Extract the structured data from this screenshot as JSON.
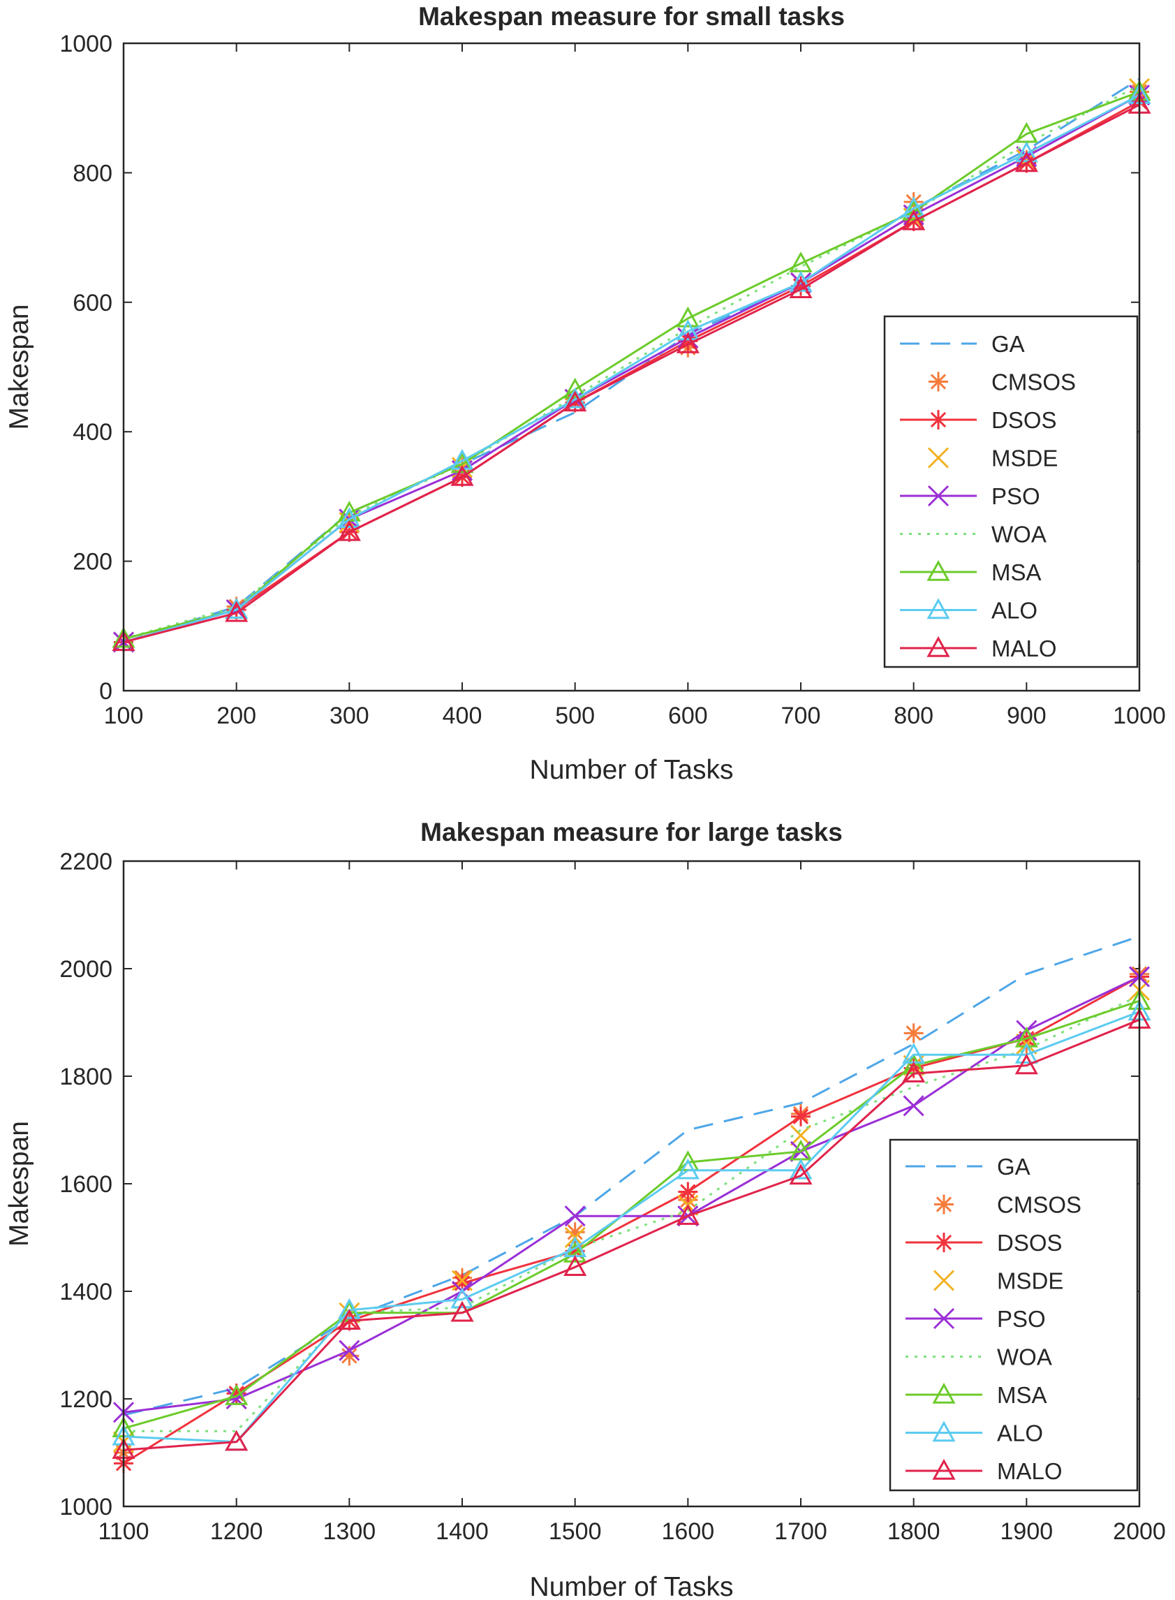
{
  "chart_data": [
    {
      "type": "line",
      "title": "Makespan measure for small tasks",
      "xlabel": "Number of Tasks",
      "ylabel": "Makespan",
      "x": [
        100,
        200,
        300,
        400,
        500,
        600,
        700,
        800,
        900,
        1000
      ],
      "xticks": [
        "100",
        "200",
        "300",
        "400",
        "500",
        "600",
        "700",
        "800",
        "900",
        "1000"
      ],
      "yticks": [
        "0",
        "200",
        "400",
        "600",
        "800",
        "1000"
      ],
      "xlim": [
        100,
        1000
      ],
      "ylim": [
        0,
        1000
      ],
      "legend_position": "inside-right",
      "series": [
        {
          "name": "GA",
          "color": "#4DA6E8",
          "style": "dashed",
          "marker": "none",
          "values": [
            75,
            130,
            275,
            350,
            430,
            550,
            630,
            745,
            835,
            945
          ]
        },
        {
          "name": "CMSOS",
          "color": "#F57B3A",
          "style": "none",
          "marker": "asterisk",
          "values": [
            75,
            130,
            265,
            345,
            450,
            530,
            625,
            755,
            820,
            925
          ]
        },
        {
          "name": "DSOS",
          "color": "#F0323C",
          "style": "solid",
          "marker": "asterisk",
          "values": [
            75,
            125,
            245,
            330,
            445,
            540,
            625,
            725,
            815,
            910
          ]
        },
        {
          "name": "MSDE",
          "color": "#F2B020",
          "style": "none",
          "marker": "x",
          "values": [
            75,
            125,
            260,
            345,
            450,
            545,
            630,
            730,
            820,
            930
          ]
        },
        {
          "name": "PSO",
          "color": "#9A2FD6",
          "style": "solid",
          "marker": "x",
          "values": [
            75,
            125,
            265,
            340,
            450,
            545,
            630,
            735,
            825,
            920
          ]
        },
        {
          "name": "WOA",
          "color": "#7EE07E",
          "style": "dotted",
          "marker": "none",
          "values": [
            80,
            130,
            270,
            350,
            455,
            560,
            655,
            740,
            845,
            935
          ]
        },
        {
          "name": "MSA",
          "color": "#6CCB2B",
          "style": "solid",
          "marker": "triangle",
          "values": [
            80,
            125,
            275,
            350,
            465,
            575,
            660,
            740,
            860,
            925
          ]
        },
        {
          "name": "ALO",
          "color": "#5CCBF0",
          "style": "solid",
          "marker": "triangle",
          "values": [
            75,
            125,
            265,
            355,
            450,
            555,
            630,
            745,
            830,
            920
          ]
        },
        {
          "name": "MALO",
          "color": "#E0234B",
          "style": "solid",
          "marker": "triangle",
          "values": [
            75,
            120,
            245,
            330,
            445,
            535,
            620,
            725,
            815,
            905
          ]
        }
      ]
    },
    {
      "type": "line",
      "title": "Makespan measure for large tasks",
      "xlabel": "Number of Tasks",
      "ylabel": "Makespan",
      "x": [
        1100,
        1200,
        1300,
        1400,
        1500,
        1600,
        1700,
        1800,
        1900,
        2000
      ],
      "xticks": [
        "1100",
        "1200",
        "1300",
        "1400",
        "1500",
        "1600",
        "1700",
        "1800",
        "1900",
        "2000"
      ],
      "yticks": [
        "1000",
        "1200",
        "1400",
        "1600",
        "1800",
        "2000",
        "2200"
      ],
      "xlim": [
        1100,
        2000
      ],
      "ylim": [
        1000,
        2200
      ],
      "legend_position": "inside-bottom-right",
      "series": [
        {
          "name": "GA",
          "color": "#4DA6E8",
          "style": "dashed",
          "marker": "none",
          "values": [
            1170,
            1220,
            1350,
            1430,
            1540,
            1700,
            1750,
            1860,
            1990,
            2060
          ]
        },
        {
          "name": "CMSOS",
          "color": "#F57B3A",
          "style": "none",
          "marker": "asterisk",
          "values": [
            1100,
            1210,
            1280,
            1425,
            1510,
            1570,
            1730,
            1880,
            1860,
            1990
          ]
        },
        {
          "name": "DSOS",
          "color": "#F0323C",
          "style": "solid",
          "marker": "asterisk",
          "values": [
            1080,
            1210,
            1345,
            1415,
            1475,
            1585,
            1725,
            1815,
            1870,
            1985
          ]
        },
        {
          "name": "MSDE",
          "color": "#F2B020",
          "style": "none",
          "marker": "x",
          "values": [
            1120,
            1200,
            1360,
            1420,
            1500,
            1560,
            1690,
            1820,
            1860,
            1960
          ]
        },
        {
          "name": "PSO",
          "color": "#9A2FD6",
          "style": "solid",
          "marker": "x",
          "values": [
            1175,
            1200,
            1290,
            1400,
            1540,
            1540,
            1660,
            1745,
            1885,
            1985
          ]
        },
        {
          "name": "WOA",
          "color": "#7EE07E",
          "style": "dotted",
          "marker": "none",
          "values": [
            1140,
            1140,
            1360,
            1370,
            1480,
            1550,
            1700,
            1780,
            1850,
            1950
          ]
        },
        {
          "name": "MSA",
          "color": "#6CCB2B",
          "style": "solid",
          "marker": "triangle",
          "values": [
            1145,
            1205,
            1360,
            1360,
            1470,
            1640,
            1660,
            1820,
            1870,
            1940
          ]
        },
        {
          "name": "ALO",
          "color": "#5CCBF0",
          "style": "solid",
          "marker": "triangle",
          "values": [
            1130,
            1120,
            1365,
            1385,
            1480,
            1625,
            1625,
            1840,
            1840,
            1920
          ]
        },
        {
          "name": "MALO",
          "color": "#E0234B",
          "style": "solid",
          "marker": "triangle",
          "values": [
            1105,
            1120,
            1345,
            1360,
            1445,
            1540,
            1615,
            1805,
            1820,
            1905
          ]
        }
      ]
    }
  ]
}
